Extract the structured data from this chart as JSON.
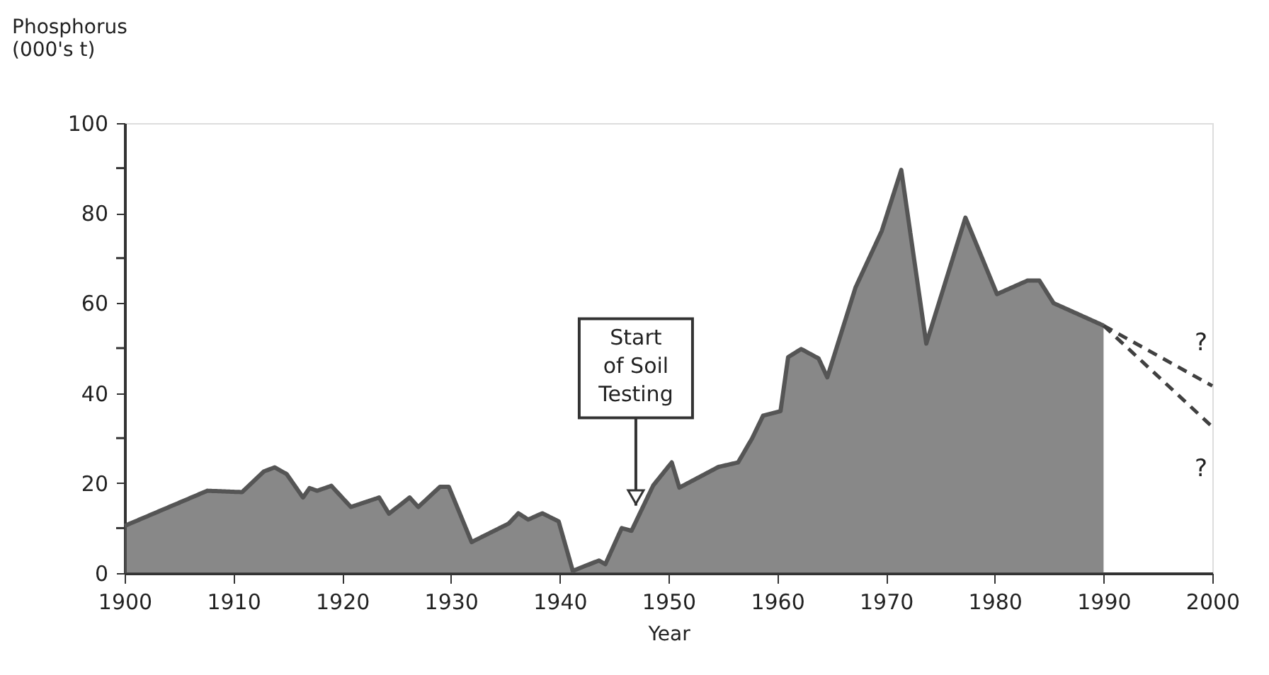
{
  "chart_data": {
    "type": "area",
    "xlabel": "Year",
    "ylabel": "Phosphorus\n(000's t)",
    "xlim": [
      1900,
      2000
    ],
    "xticks": [
      1900,
      1910,
      1920,
      1930,
      1940,
      1950,
      1960,
      1970,
      1980,
      1990,
      2000
    ],
    "ylim": [
      0,
      100
    ],
    "yticks": [
      0,
      {
        "value": 10,
        "label": null
      },
      20,
      {
        "value": 30,
        "label": null
      },
      40,
      {
        "value": 50,
        "label": null
      },
      60,
      {
        "value": 70,
        "label": null
      },
      80,
      {
        "value": 90,
        "label": null
      },
      100
    ],
    "grid": false,
    "series": [
      {
        "color": "#555555",
        "x": [
          1900,
          1907.6,
          1910.8,
          1912.8,
          1913.8,
          1914.9,
          1916.4,
          1917,
          1917.7,
          1919,
          1920.8,
          1923.4,
          1924.3,
          1926.2,
          1927,
          1929,
          1929.8,
          1931.9,
          1935.3,
          1936.2,
          1937.1,
          1938.4,
          1939.9,
          1941.2,
          1943.6,
          1944.2,
          1945.7,
          1946.6,
          1948.6,
          1950.3,
          1951,
          1954.6,
          1956.4,
          1957.7,
          1958.7,
          1960.3,
          1961,
          1962.2,
          1963.8,
          1964.6,
          1967.2,
          1969.6,
          1971.4,
          1973.7,
          1977.3,
          1980.2,
          1983,
          1984.1,
          1985.4,
          1990
        ],
        "values": [
          10.5,
          18.3,
          18,
          22.6,
          23.5,
          22,
          16.8,
          18.9,
          18.3,
          19.4,
          14.7,
          16.8,
          13.2,
          16.8,
          14.7,
          19.2,
          19.2,
          6.9,
          11,
          13.3,
          11.9,
          13.3,
          11.5,
          0.5,
          2.8,
          2,
          10,
          9.4,
          19.5,
          24.6,
          19,
          23.6,
          24.6,
          30,
          35,
          36,
          48,
          49.8,
          47.7,
          43.5,
          63.5,
          76,
          89.6,
          51,
          79,
          62,
          65,
          65,
          60,
          55
        ]
      },
      {
        "type": "line",
        "line_style": "dashed",
        "color": "#404040",
        "x": [
          1990,
          2000
        ],
        "values": [
          55,
          41.6
        ]
      },
      {
        "type": "line",
        "line_style": "dashed",
        "color": "#404040",
        "x": [
          1990,
          2000
        ],
        "values": [
          55,
          32.5
        ]
      }
    ],
    "annotations": [
      {
        "text": "Start\nof Soil\nTesting",
        "x": 1947,
        "y": 15
      },
      "?",
      "?"
    ]
  }
}
